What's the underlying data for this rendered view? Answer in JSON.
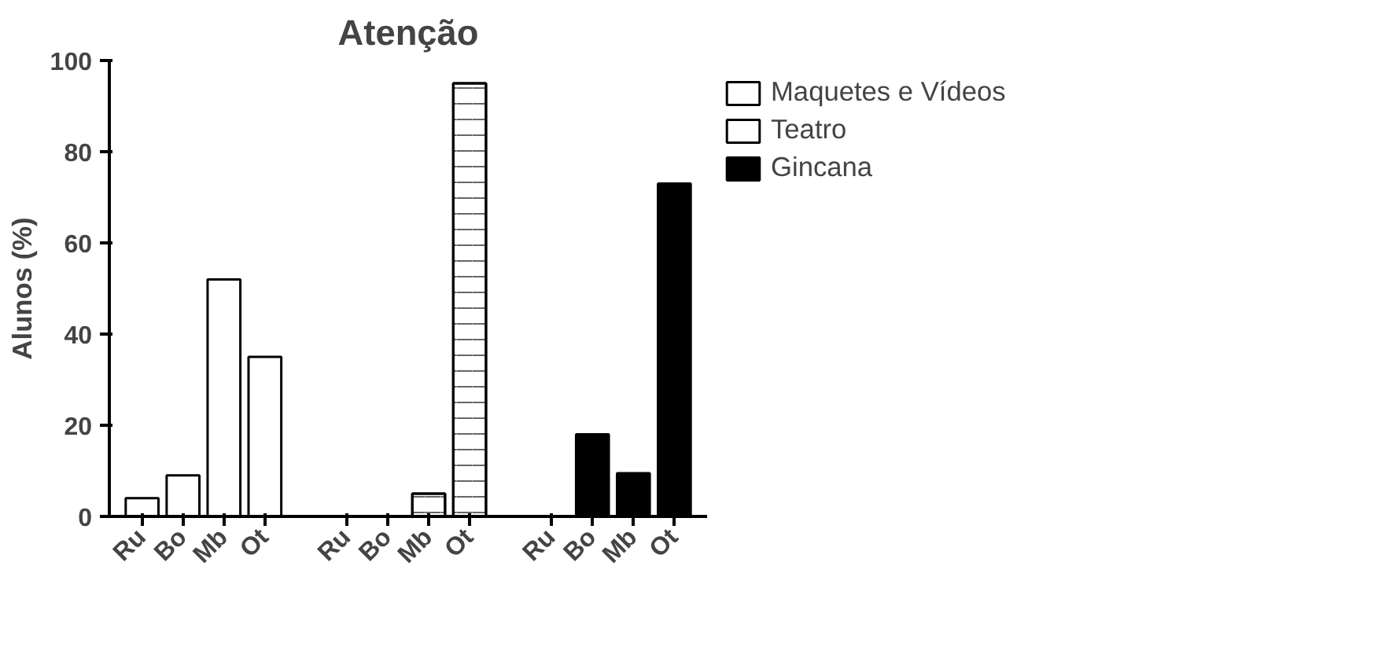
{
  "chart_data": {
    "type": "bar",
    "title": "Atenção",
    "ylabel": "Alunos (%)",
    "categories": [
      "Ru",
      "Bo",
      "Mb",
      "Ot",
      "Ru",
      "Bo",
      "Mb",
      "Ot",
      "Ru",
      "Bo",
      "Mb",
      "Ot"
    ],
    "series": [
      {
        "name": "Maquetes e Vídeos",
        "color": "#ffffff",
        "values": [
          4,
          9,
          52,
          35,
          null,
          null,
          null,
          null,
          null,
          null,
          null,
          null
        ]
      },
      {
        "name": "Teatro",
        "color": "#ffffff",
        "values": [
          null,
          null,
          null,
          null,
          0,
          0,
          5,
          95,
          null,
          null,
          null,
          null
        ]
      },
      {
        "name": "Gincana",
        "color": "#000000",
        "values": [
          null,
          null,
          null,
          null,
          null,
          null,
          null,
          null,
          0,
          18,
          9.5,
          73
        ]
      }
    ],
    "ylim": [
      0,
      100
    ],
    "yticks": [
      0,
      20,
      40,
      60,
      80,
      100
    ],
    "grid": false,
    "legend": "top right"
  }
}
